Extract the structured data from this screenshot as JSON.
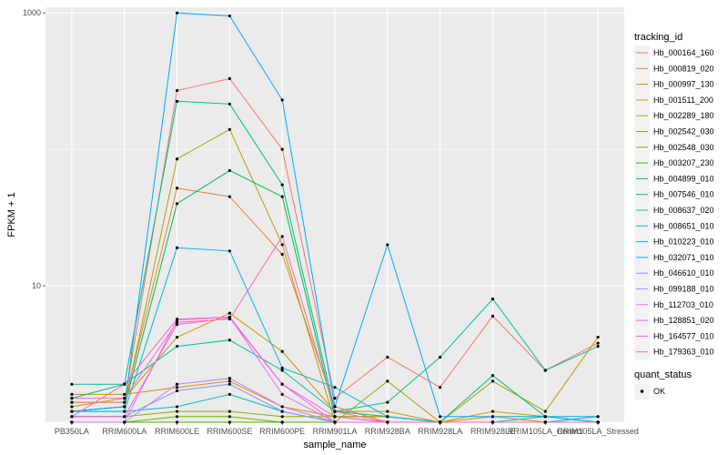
{
  "chart_data": {
    "type": "line",
    "xlabel": "sample_name",
    "ylabel": "FPKM + 1",
    "yscale": "log10",
    "ylim": [
      1.0,
      1100
    ],
    "yticks": [
      10,
      1000
    ],
    "grid": true,
    "legend_placement": "right",
    "categories": [
      "PB350LA",
      "RRIM600LA",
      "RRIM600LE",
      "RRIM600SE",
      "RRIM600PE",
      "RRIM901LA",
      "RRIM928BA",
      "RRIM928LA",
      "RRIM928LE",
      "RRIM105LA_Control",
      "RRIM105LA_Stressed"
    ],
    "legend_title": "tracking_id",
    "shape_legend": {
      "title": "quant_status",
      "items": [
        "OK"
      ]
    },
    "series": [
      {
        "name": "Hb_000164_160",
        "color": "#F8766D",
        "values": [
          1.4,
          1.4,
          270,
          330,
          100,
          1.5,
          3.0,
          1.8,
          6.0,
          2.4,
          3.8
        ]
      },
      {
        "name": "Hb_000819_020",
        "color": "#EC8239",
        "values": [
          1.4,
          1.4,
          52,
          45,
          17,
          1.3,
          1.0,
          1.0,
          1.0,
          1.0,
          1.0
        ]
      },
      {
        "name": "Hb_000997_130",
        "color": "#DB8E00",
        "values": [
          1.6,
          1.6,
          1.8,
          2.0,
          1.3,
          1.1,
          1.1,
          1.0,
          1.1,
          1.0,
          1.0
        ]
      },
      {
        "name": "Hb_001511_200",
        "color": "#C79800",
        "values": [
          1.3,
          1.5,
          4.2,
          6.3,
          3.3,
          1.2,
          1.2,
          1.0,
          1.2,
          1.1,
          1.0
        ]
      },
      {
        "name": "Hb_002289_180",
        "color": "#AFA100",
        "values": [
          1.2,
          1.3,
          85,
          140,
          20,
          1.0,
          2.0,
          1.0,
          2.0,
          1.2,
          4.2
        ]
      },
      {
        "name": "Hb_002542_030",
        "color": "#94AA00",
        "values": [
          1.1,
          1.1,
          1.2,
          1.2,
          1.1,
          1.1,
          1.1,
          1.0,
          1.0,
          1.0,
          1.0
        ]
      },
      {
        "name": "Hb_002548_030",
        "color": "#72B000",
        "values": [
          1.0,
          1.0,
          1.1,
          1.1,
          1.0,
          1.0,
          1.0,
          1.0,
          1.0,
          1.0,
          1.0
        ]
      },
      {
        "name": "Hb_003207_230",
        "color": "#3DB700",
        "values": [
          1.0,
          1.0,
          1.0,
          1.0,
          1.0,
          1.0,
          1.0,
          1.0,
          1.0,
          1.0,
          1.0
        ]
      },
      {
        "name": "Hb_004899_010",
        "color": "#00BB4C",
        "values": [
          1.2,
          1.3,
          40,
          70,
          45,
          1.1,
          1.0,
          1.0,
          1.0,
          1.0,
          1.0
        ]
      },
      {
        "name": "Hb_007546_010",
        "color": "#00BE7D",
        "values": [
          1.5,
          1.9,
          225,
          215,
          55,
          1.2,
          1.1,
          1.0,
          2.2,
          1.1,
          1.0
        ]
      },
      {
        "name": "Hb_008637_020",
        "color": "#00C0A3",
        "values": [
          1.9,
          1.9,
          3.6,
          4.0,
          2.4,
          1.2,
          1.4,
          3.0,
          8.0,
          2.4,
          3.6
        ]
      },
      {
        "name": "Hb_008651_010",
        "color": "#00BFC4",
        "values": [
          1.2,
          1.2,
          1.3,
          1.6,
          1.2,
          1.0,
          1.0,
          1.0,
          1.0,
          1.1,
          1.0
        ]
      },
      {
        "name": "Hb_010223_010",
        "color": "#00B8E7",
        "values": [
          1.2,
          1.2,
          19,
          18,
          2.5,
          1.8,
          1.1,
          1.0,
          1.0,
          1.0,
          1.1
        ]
      },
      {
        "name": "Hb_032071_010",
        "color": "#00A9FF",
        "values": [
          1.2,
          1.3,
          1000,
          950,
          230,
          1.3,
          20,
          1.1,
          1.1,
          1.1,
          1.1
        ]
      },
      {
        "name": "Hb_046610_010",
        "color": "#8B93FF",
        "values": [
          1.1,
          1.1,
          1.7,
          1.9,
          1.2,
          1.0,
          1.0,
          1.0,
          1.0,
          1.0,
          1.0
        ]
      },
      {
        "name": "Hb_099188_010",
        "color": "#B983FF",
        "values": [
          1.0,
          1.0,
          1.9,
          2.1,
          1.3,
          1.0,
          1.0,
          1.0,
          1.0,
          1.0,
          1.0
        ]
      },
      {
        "name": "Hb_112703_010",
        "color": "#DC71FA",
        "values": [
          1.0,
          1.0,
          5.6,
          5.9,
          1.6,
          1.0,
          1.0,
          1.0,
          1.0,
          1.0,
          1.0
        ]
      },
      {
        "name": "Hb_128851_020",
        "color": "#F265E7",
        "values": [
          1.1,
          1.1,
          5.2,
          5.8,
          1.9,
          1.0,
          1.0,
          1.0,
          1.0,
          1.0,
          1.0
        ]
      },
      {
        "name": "Hb_164577_010",
        "color": "#FD61D1",
        "values": [
          1.1,
          1.9,
          5.7,
          5.9,
          1.9,
          1.1,
          1.0,
          1.0,
          1.0,
          1.0,
          1.0
        ]
      },
      {
        "name": "Hb_179363_010",
        "color": "#FF6AB4",
        "values": [
          1.5,
          1.5,
          5.4,
          5.7,
          23,
          1.2,
          1.0,
          1.0,
          1.0,
          1.0,
          1.0
        ]
      }
    ]
  }
}
